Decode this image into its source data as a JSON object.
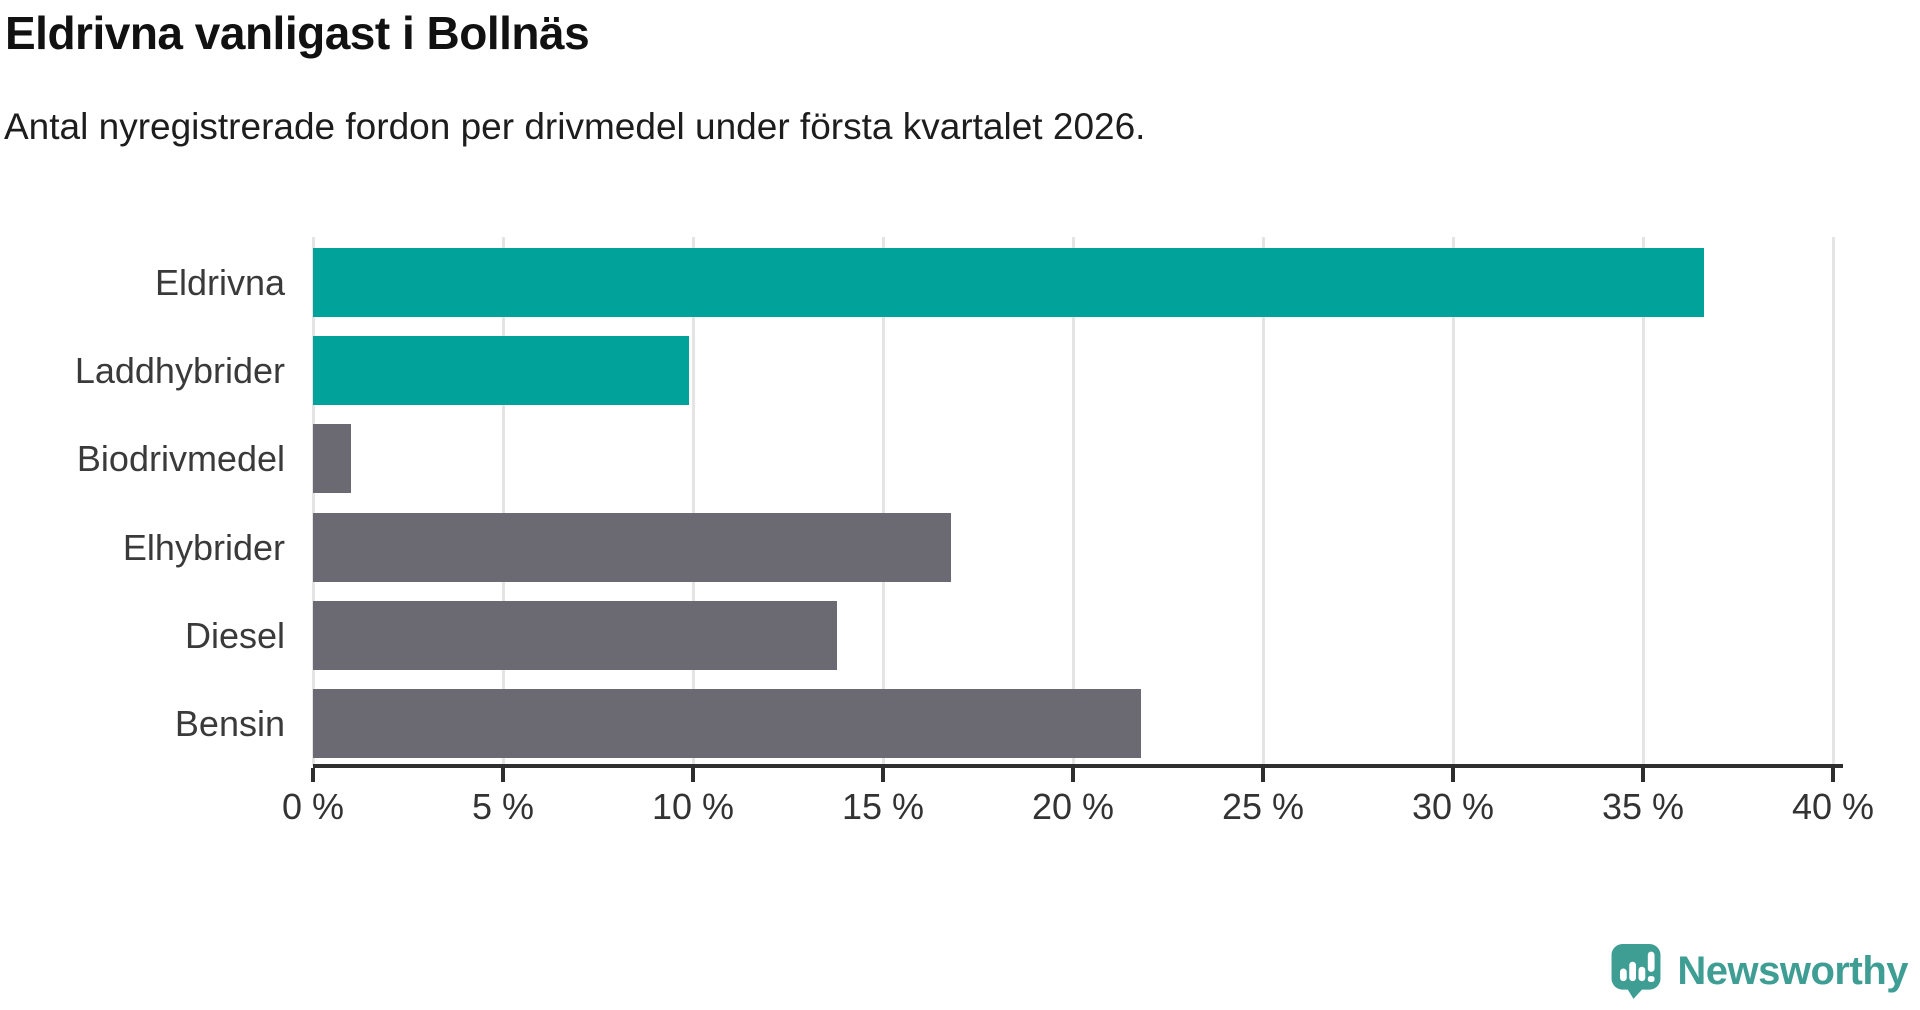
{
  "header": {
    "title": "Eldrivna vanligast i Bollnäs",
    "subtitle": "Antal nyregistrerade fordon per drivmedel under första kvartalet 2026."
  },
  "chart_data": {
    "type": "bar",
    "orientation": "horizontal",
    "title": "Eldrivna vanligast i Bollnäs",
    "subtitle": "Antal nyregistrerade fordon per drivmedel under första kvartalet 2026.",
    "categories": [
      "Eldrivna",
      "Laddhybrider",
      "Biodrivmedel",
      "Elhybrider",
      "Diesel",
      "Bensin"
    ],
    "values": [
      36.6,
      9.9,
      1.0,
      16.8,
      13.8,
      21.8
    ],
    "unit": "%",
    "bar_colors": [
      "#00a299",
      "#00a299",
      "#6b6a73",
      "#6b6a73",
      "#6b6a73",
      "#6b6a73"
    ],
    "highlight_color": "#00a299",
    "default_color": "#6b6a73",
    "x_tick_values": [
      0,
      5,
      10,
      15,
      20,
      25,
      30,
      35,
      40
    ],
    "x_tick_labels": [
      "0 %",
      "5 %",
      "10 %",
      "15 %",
      "20 %",
      "25 %",
      "30 %",
      "35 %",
      "40 %"
    ],
    "xlim": [
      0,
      40
    ],
    "xlabel": "",
    "ylabel": "",
    "grid": true,
    "legend": false
  },
  "footer": {
    "brand": "Newsworthy",
    "brand_color": "#3f9e94",
    "logo_icon": "speech-bubble-bar-chart-exclamation"
  }
}
